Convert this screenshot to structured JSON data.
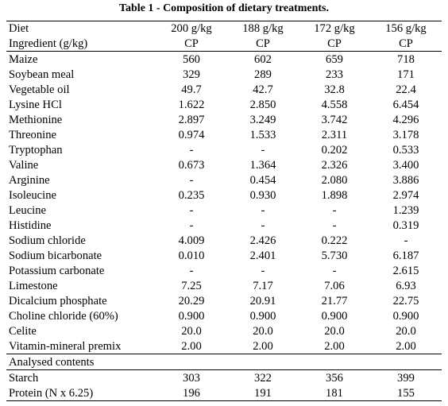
{
  "caption": "Table 1 - Composition of dietary treatments.",
  "header": {
    "diet_label": "Diet",
    "ingredient_label": "Ingredient (g/kg)",
    "treatments": [
      {
        "level": "200 g/kg",
        "unit": "CP"
      },
      {
        "level": "188 g/kg",
        "unit": "CP"
      },
      {
        "level": "172 g/kg",
        "unit": "CP"
      },
      {
        "level": "156 g/kg",
        "unit": "CP"
      }
    ]
  },
  "ingredients": [
    {
      "name": "Maize",
      "values": [
        "560",
        "602",
        "659",
        "718"
      ]
    },
    {
      "name": "Soybean meal",
      "values": [
        "329",
        "289",
        "233",
        "171"
      ]
    },
    {
      "name": "Vegetable oil",
      "values": [
        "49.7",
        "42.7",
        "32.8",
        "22.4"
      ]
    },
    {
      "name": "Lysine HCl",
      "values": [
        "1.622",
        "2.850",
        "4.558",
        "6.454"
      ]
    },
    {
      "name": "Methionine",
      "values": [
        "2.897",
        "3.249",
        "3.742",
        "4.296"
      ]
    },
    {
      "name": "Threonine",
      "values": [
        "0.974",
        "1.533",
        "2.311",
        "3.178"
      ]
    },
    {
      "name": "Tryptophan",
      "values": [
        "-",
        "-",
        "0.202",
        "0.533"
      ]
    },
    {
      "name": "Valine",
      "values": [
        "0.673",
        "1.364",
        "2.326",
        "3.400"
      ]
    },
    {
      "name": "Arginine",
      "values": [
        "-",
        "0.454",
        "2.080",
        "3.886"
      ]
    },
    {
      "name": "Isoleucine",
      "values": [
        "0.235",
        "0.930",
        "1.898",
        "2.974"
      ]
    },
    {
      "name": "Leucine",
      "values": [
        "-",
        "-",
        "-",
        "1.239"
      ]
    },
    {
      "name": "Histidine",
      "values": [
        "-",
        "-",
        "-",
        "0.319"
      ]
    },
    {
      "name": "Sodium chloride",
      "values": [
        "4.009",
        "2.426",
        "0.222",
        "-"
      ]
    },
    {
      "name": "Sodium bicarbonate",
      "values": [
        "0.010",
        "2.401",
        "5.730",
        "6.187"
      ]
    },
    {
      "name": "Potassium carbonate",
      "values": [
        "-",
        "-",
        "-",
        "2.615"
      ]
    },
    {
      "name": "Limestone",
      "values": [
        "7.25",
        "7.17",
        "7.06",
        "6.93"
      ]
    },
    {
      "name": "Dicalcium phosphate",
      "values": [
        "20.29",
        "20.91",
        "21.77",
        "22.75"
      ]
    },
    {
      "name": "Choline chloride (60%)",
      "values": [
        "0.900",
        "0.900",
        "0.900",
        "0.900"
      ]
    },
    {
      "name": "Celite",
      "values": [
        "20.0",
        "20.0",
        "20.0",
        "20.0"
      ]
    },
    {
      "name": "Vitamin-mineral premix",
      "values": [
        "2.00",
        "2.00",
        "2.00",
        "2.00"
      ]
    }
  ],
  "analysed": {
    "section_label": "Analysed contents",
    "rows": [
      {
        "name": "Starch",
        "values": [
          "303",
          "322",
          "356",
          "399"
        ]
      },
      {
        "name": "Protein (N x 6.25)",
        "values": [
          "196",
          "191",
          "181",
          "155"
        ]
      }
    ]
  }
}
